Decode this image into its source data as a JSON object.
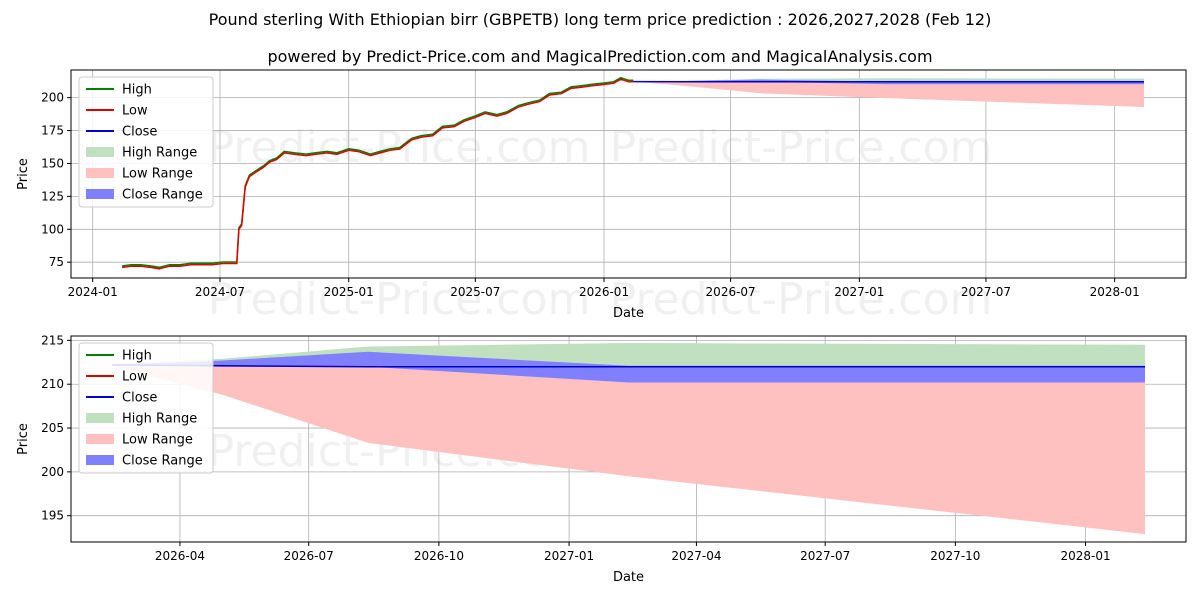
{
  "header": {
    "title": "Pound sterling With Ethiopian birr (GBPETB) long term price prediction : 2026,2027,2028 (Feb 12)",
    "subtitle": "powered by Predict-Price.com and MagicalPrediction.com and MagicalAnalysis.com"
  },
  "watermark": "Predict-Price.com",
  "colors": {
    "high": "#008000",
    "low": "#e00000",
    "close": "#0000cc",
    "high_range": "#c0e0c0",
    "low_range": "#ffc0c0",
    "close_range": "#8080ff"
  },
  "chart_data": [
    {
      "type": "line",
      "id": "history",
      "xlabel": "Date",
      "ylabel": "Price",
      "xlim": [
        "2023-12-01",
        "2028-04-12"
      ],
      "ylim": [
        63,
        221
      ],
      "xticks": [
        {
          "date": "2024-01-01",
          "label": "2024-01"
        },
        {
          "date": "2024-07-01",
          "label": "2024-07"
        },
        {
          "date": "2025-01-01",
          "label": "2025-01"
        },
        {
          "date": "2025-07-01",
          "label": "2025-07"
        },
        {
          "date": "2026-01-01",
          "label": "2026-01"
        },
        {
          "date": "2026-07-01",
          "label": "2026-07"
        },
        {
          "date": "2027-01-01",
          "label": "2027-01"
        },
        {
          "date": "2027-07-01",
          "label": "2027-07"
        },
        {
          "date": "2028-01-01",
          "label": "2028-01"
        }
      ],
      "yticks": [
        75,
        100,
        125,
        150,
        175,
        200
      ],
      "price_history": [
        [
          "2024-02-12",
          71
        ],
        [
          "2024-02-25",
          72
        ],
        [
          "2024-03-10",
          72
        ],
        [
          "2024-03-25",
          71
        ],
        [
          "2024-04-05",
          70
        ],
        [
          "2024-04-20",
          72
        ],
        [
          "2024-05-05",
          72
        ],
        [
          "2024-05-20",
          73
        ],
        [
          "2024-06-05",
          73
        ],
        [
          "2024-06-20",
          73
        ],
        [
          "2024-07-05",
          74
        ],
        [
          "2024-07-25",
          74
        ],
        [
          "2024-07-28",
          100
        ],
        [
          "2024-08-01",
          103
        ],
        [
          "2024-08-06",
          132
        ],
        [
          "2024-08-12",
          140
        ],
        [
          "2024-08-20",
          143
        ],
        [
          "2024-09-01",
          147
        ],
        [
          "2024-09-10",
          151
        ],
        [
          "2024-09-20",
          153
        ],
        [
          "2024-10-01",
          158
        ],
        [
          "2024-10-15",
          157
        ],
        [
          "2024-11-01",
          156
        ],
        [
          "2024-11-15",
          157
        ],
        [
          "2024-12-01",
          158
        ],
        [
          "2024-12-15",
          157
        ],
        [
          "2025-01-01",
          160
        ],
        [
          "2025-01-15",
          159
        ],
        [
          "2025-02-01",
          156
        ],
        [
          "2025-02-15",
          158
        ],
        [
          "2025-03-01",
          160
        ],
        [
          "2025-03-15",
          161
        ],
        [
          "2025-04-01",
          168
        ],
        [
          "2025-04-15",
          170
        ],
        [
          "2025-05-01",
          171
        ],
        [
          "2025-05-15",
          177
        ],
        [
          "2025-06-01",
          178
        ],
        [
          "2025-06-15",
          182
        ],
        [
          "2025-07-01",
          185
        ],
        [
          "2025-07-15",
          188
        ],
        [
          "2025-08-01",
          186
        ],
        [
          "2025-08-15",
          188
        ],
        [
          "2025-09-01",
          193
        ],
        [
          "2025-09-15",
          195
        ],
        [
          "2025-10-01",
          197
        ],
        [
          "2025-10-15",
          202
        ],
        [
          "2025-11-01",
          203
        ],
        [
          "2025-11-15",
          207
        ],
        [
          "2025-12-01",
          208
        ],
        [
          "2025-12-15",
          209
        ],
        [
          "2026-01-01",
          210
        ],
        [
          "2026-01-15",
          211
        ],
        [
          "2026-01-25",
          214
        ],
        [
          "2026-02-05",
          212
        ],
        [
          "2026-02-12",
          212
        ]
      ],
      "forecast": {
        "dates": [
          "2026-02-12",
          "2026-05-01",
          "2026-08-12",
          "2027-02-12",
          "2028-02-12"
        ],
        "close": [
          212.2,
          212.1,
          212.0,
          212.0,
          212.0
        ],
        "high_upper": [
          212.3,
          212.9,
          214.3,
          214.7,
          214.5
        ],
        "low_lower": [
          212.1,
          208.8,
          203.3,
          199.5,
          192.9
        ],
        "close_upper": [
          212.2,
          212.7,
          213.7,
          212.1,
          212.1
        ],
        "close_lower": [
          212.2,
          212.0,
          212.0,
          210.2,
          210.2
        ]
      },
      "legend": {
        "placement": "top-left",
        "entries": [
          {
            "label": "High",
            "kind": "line",
            "color": "#008000"
          },
          {
            "label": "Low",
            "kind": "line",
            "color": "#e00000"
          },
          {
            "label": "Close",
            "kind": "line",
            "color": "#0000cc"
          },
          {
            "label": "High Range",
            "kind": "patch",
            "color": "#c0e0c0"
          },
          {
            "label": "Low Range",
            "kind": "patch",
            "color": "#ffc0c0"
          },
          {
            "label": "Close Range",
            "kind": "patch",
            "color": "#8080ff"
          }
        ]
      }
    },
    {
      "type": "area",
      "id": "forecast",
      "xlabel": "Date",
      "ylabel": "Price",
      "xlim": [
        "2026-01-14",
        "2028-03-12"
      ],
      "ylim": [
        192,
        215.5
      ],
      "xticks": [
        {
          "date": "2026-04-01",
          "label": "2026-04"
        },
        {
          "date": "2026-07-01",
          "label": "2026-07"
        },
        {
          "date": "2026-10-01",
          "label": "2026-10"
        },
        {
          "date": "2027-01-01",
          "label": "2027-01"
        },
        {
          "date": "2027-04-01",
          "label": "2027-04"
        },
        {
          "date": "2027-07-01",
          "label": "2027-07"
        },
        {
          "date": "2027-10-01",
          "label": "2027-10"
        },
        {
          "date": "2028-01-01",
          "label": "2028-01"
        }
      ],
      "yticks": [
        195,
        200,
        205,
        210,
        215
      ],
      "forecast": {
        "dates": [
          "2026-02-12",
          "2026-05-01",
          "2026-08-12",
          "2027-02-12",
          "2028-02-12"
        ],
        "close": [
          212.2,
          212.1,
          212.0,
          212.0,
          212.0
        ],
        "high_upper": [
          212.3,
          212.9,
          214.3,
          214.7,
          214.5
        ],
        "low_lower": [
          212.1,
          208.8,
          203.3,
          199.5,
          192.9
        ],
        "close_upper": [
          212.2,
          212.7,
          213.7,
          212.1,
          212.1
        ],
        "close_lower": [
          212.2,
          212.0,
          212.0,
          210.2,
          210.2
        ]
      },
      "legend": {
        "placement": "top-left",
        "entries": [
          {
            "label": "High",
            "kind": "line",
            "color": "#008000"
          },
          {
            "label": "Low",
            "kind": "line",
            "color": "#e00000"
          },
          {
            "label": "Close",
            "kind": "line",
            "color": "#0000cc"
          },
          {
            "label": "High Range",
            "kind": "patch",
            "color": "#c0e0c0"
          },
          {
            "label": "Low Range",
            "kind": "patch",
            "color": "#ffc0c0"
          },
          {
            "label": "Close Range",
            "kind": "patch",
            "color": "#8080ff"
          }
        ]
      }
    }
  ]
}
